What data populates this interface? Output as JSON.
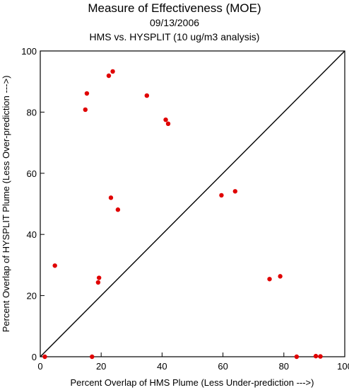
{
  "chart_data": {
    "type": "scatter",
    "title": "Measure of Effectiveness (MOE)",
    "subtitle": "09/13/2006",
    "subtitle2": "HMS vs. HYSPLIT  (10 ug/m3 analysis)",
    "xlabel": "Percent Overlap of HMS Plume (Less Under-prediction --->)",
    "ylabel": "Percent Overlap of HYSPLIT Plume (Less Over-prediction --->)",
    "xlim": [
      0,
      100
    ],
    "ylim": [
      0,
      100
    ],
    "xticks": [
      0,
      20,
      40,
      60,
      80,
      100
    ],
    "yticks": [
      0,
      20,
      40,
      60,
      80,
      100
    ],
    "diagonal_reference_line": true,
    "grid": false,
    "point_color": "#e00000",
    "points": [
      {
        "x": 1.5,
        "y": 0.0
      },
      {
        "x": 4.8,
        "y": 29.8
      },
      {
        "x": 14.8,
        "y": 80.8
      },
      {
        "x": 15.3,
        "y": 86.1
      },
      {
        "x": 17.0,
        "y": 0.0
      },
      {
        "x": 19.0,
        "y": 24.3
      },
      {
        "x": 19.3,
        "y": 25.8
      },
      {
        "x": 22.5,
        "y": 91.9
      },
      {
        "x": 23.2,
        "y": 52.0
      },
      {
        "x": 23.8,
        "y": 93.3
      },
      {
        "x": 25.5,
        "y": 48.1
      },
      {
        "x": 35.0,
        "y": 85.4
      },
      {
        "x": 41.2,
        "y": 77.5
      },
      {
        "x": 42.0,
        "y": 76.2
      },
      {
        "x": 59.5,
        "y": 52.8
      },
      {
        "x": 64.0,
        "y": 54.1
      },
      {
        "x": 75.3,
        "y": 25.4
      },
      {
        "x": 78.8,
        "y": 26.3
      },
      {
        "x": 84.2,
        "y": 0.0
      },
      {
        "x": 90.5,
        "y": 0.2
      },
      {
        "x": 92.0,
        "y": 0.1
      }
    ]
  }
}
